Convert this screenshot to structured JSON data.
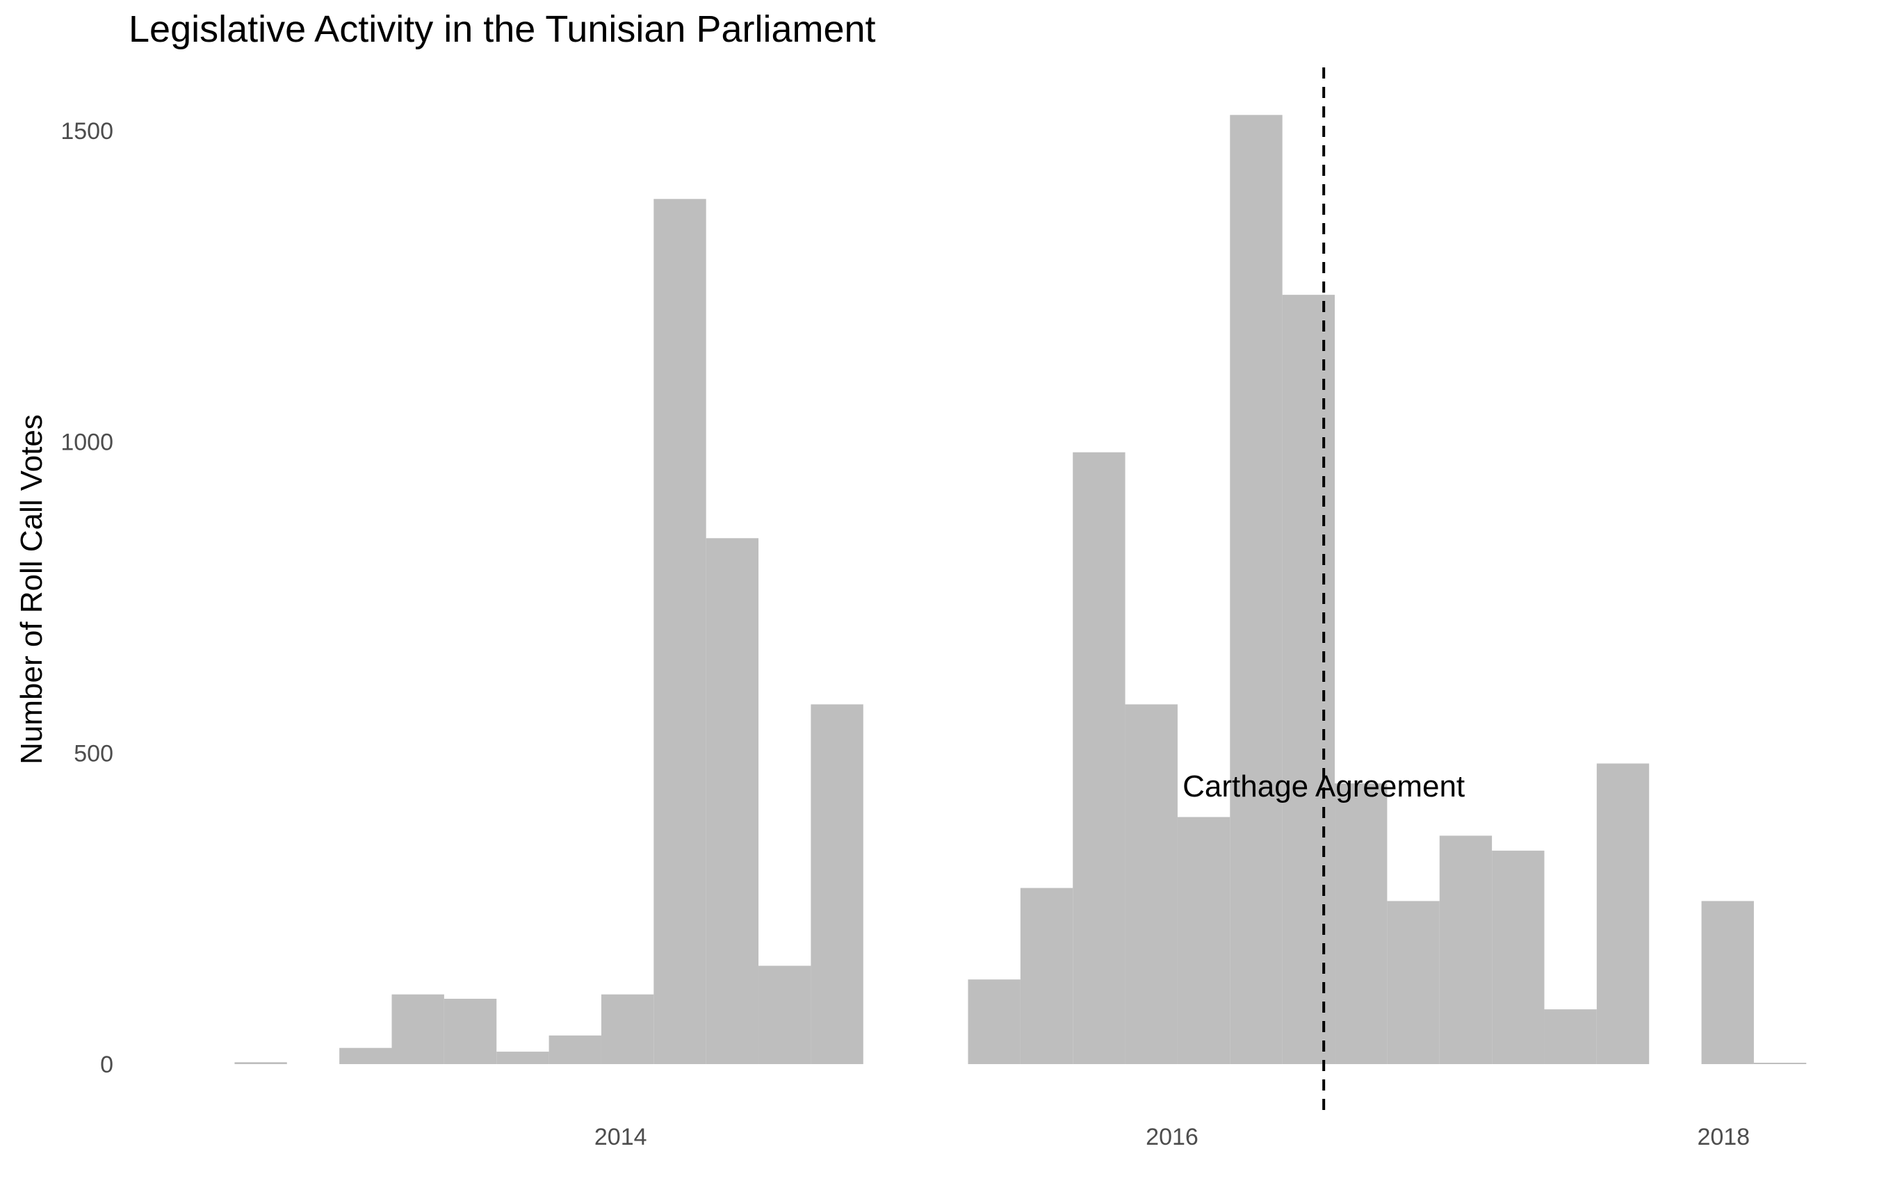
{
  "chart_data": {
    "type": "bar",
    "title": "Legislative Activity in the Tunisian Parliament",
    "xlabel": "",
    "ylabel": "Number of Roll Call Votes",
    "x_ticks": [
      2014,
      2016,
      2018
    ],
    "y_ticks": [
      0,
      500,
      1000,
      1500
    ],
    "ylim": [
      0,
      1550
    ],
    "xlim": [
      2012.43,
      2018.38
    ],
    "bin_width_years": 0.19,
    "bin_starts": [
      2012.6,
      2012.79,
      2012.98,
      2013.17,
      2013.36,
      2013.55,
      2013.74,
      2013.93,
      2014.12,
      2014.31,
      2014.5,
      2014.69,
      2014.88,
      2015.07,
      2015.26,
      2015.45,
      2015.64,
      2015.83,
      2016.02,
      2016.21,
      2016.4,
      2016.59,
      2016.78,
      2016.97,
      2017.16,
      2017.35,
      2017.54,
      2017.73,
      2017.92,
      2018.11
    ],
    "values": [
      3,
      0,
      26,
      112,
      105,
      20,
      46,
      112,
      1390,
      845,
      158,
      578,
      0,
      0,
      136,
      283,
      983,
      578,
      397,
      1525,
      1236,
      451,
      262,
      367,
      343,
      88,
      483,
      0,
      262,
      1
    ],
    "grid": false,
    "bar_color": "#bebebe",
    "vline": {
      "x": 2016.55,
      "style": "dashed",
      "label": "Carthage Agreement"
    }
  }
}
